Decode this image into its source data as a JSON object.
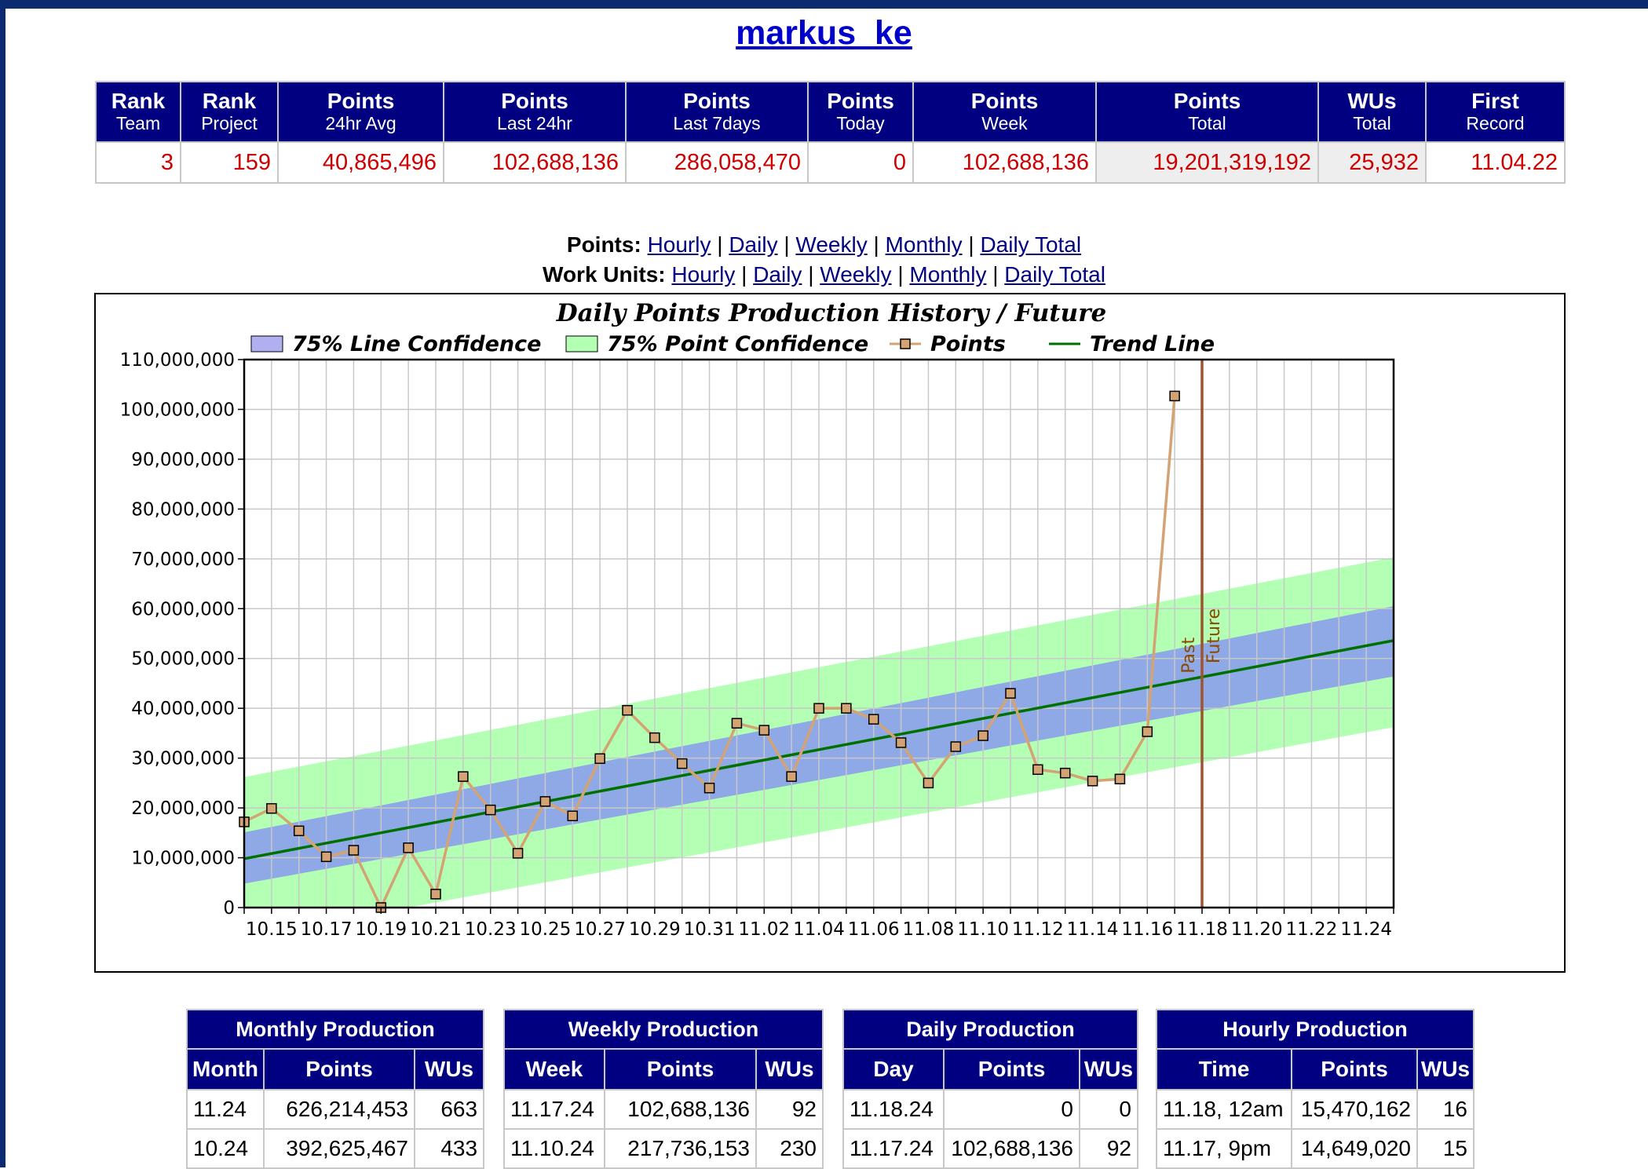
{
  "user": {
    "name": "markus_ke"
  },
  "stats": {
    "headers": [
      {
        "top": "Rank",
        "bottom": "Team"
      },
      {
        "top": "Rank",
        "bottom": "Project"
      },
      {
        "top": "Points",
        "bottom": "24hr Avg"
      },
      {
        "top": "Points",
        "bottom": "Last 24hr"
      },
      {
        "top": "Points",
        "bottom": "Last 7days"
      },
      {
        "top": "Points",
        "bottom": "Today"
      },
      {
        "top": "Points",
        "bottom": "Week"
      },
      {
        "top": "Points",
        "bottom": "Total"
      },
      {
        "top": "WUs",
        "bottom": "Total"
      },
      {
        "top": "First",
        "bottom": "Record"
      }
    ],
    "values": [
      "3",
      "159",
      "40,865,496",
      "102,688,136",
      "286,058,470",
      "0",
      "102,688,136",
      "19,201,319,192",
      "25,932",
      "11.04.22"
    ]
  },
  "nav": {
    "points_label": "Points:",
    "wus_label": "Work Units:",
    "links": [
      "Hourly",
      "Daily",
      "Weekly",
      "Monthly",
      "Daily Total"
    ],
    "separator": "|"
  },
  "chart_data": {
    "type": "line",
    "title": "Daily Points Production History / Future",
    "legend": [
      "75% Line Confidence",
      "75% Point Confidence",
      "Points",
      "Trend Line"
    ],
    "legend_position": "top",
    "x_tick_labels": [
      "10.15",
      "10.17",
      "10.19",
      "10.21",
      "10.23",
      "10.25",
      "10.27",
      "10.29",
      "10.31",
      "11.02",
      "11.04",
      "11.06",
      "11.08",
      "11.10",
      "11.12",
      "11.14",
      "11.16",
      "11.18",
      "11.20",
      "11.22",
      "11.24"
    ],
    "x_range": [
      "10.14",
      "11.25"
    ],
    "ylim": [
      0,
      110000000
    ],
    "y_tick_labels": [
      "0",
      "10,000,000",
      "20,000,000",
      "30,000,000",
      "40,000,000",
      "50,000,000",
      "60,000,000",
      "70,000,000",
      "80,000,000",
      "90,000,000",
      "100,000,000",
      "110,000,000"
    ],
    "grid": true,
    "series": [
      {
        "name": "Points",
        "x": [
          "10.14",
          "10.15",
          "10.16",
          "10.17",
          "10.18",
          "10.19",
          "10.20",
          "10.21",
          "10.22",
          "10.23",
          "10.24",
          "10.25",
          "10.26",
          "10.27",
          "10.28",
          "10.29",
          "10.30",
          "10.31",
          "11.01",
          "11.02",
          "11.03",
          "11.04",
          "11.05",
          "11.06",
          "11.07",
          "11.08",
          "11.09",
          "11.10",
          "11.11",
          "11.12",
          "11.13",
          "11.14",
          "11.15",
          "11.16",
          "11.17"
        ],
        "values": [
          17200000,
          19900000,
          15400000,
          10200000,
          11500000,
          0,
          12000000,
          2700000,
          26300000,
          19600000,
          10900000,
          21300000,
          18400000,
          29900000,
          39600000,
          34100000,
          28900000,
          24000000,
          37000000,
          35600000,
          26300000,
          40000000,
          40000000,
          37800000,
          33100000,
          25000000,
          32300000,
          34500000,
          43000000,
          27700000,
          27000000,
          25400000,
          25800000,
          35300000,
          102688136
        ],
        "color": "#d4a373"
      },
      {
        "name": "Trend Line",
        "x": [
          "10.14",
          "11.25"
        ],
        "values": [
          9800000,
          53600000
        ],
        "color": "#007000"
      }
    ],
    "bands": [
      {
        "name": "75% Line Confidence",
        "x": [
          "10.14",
          "11.25"
        ],
        "lower": [
          4800000,
          46400000
        ],
        "upper": [
          15100000,
          60500000
        ],
        "color": "#8fa9e6"
      },
      {
        "name": "75% Point Confidence",
        "x": [
          "10.14",
          "11.25"
        ],
        "lower": [
          -6000000,
          36200000
        ],
        "upper": [
          26200000,
          70300000
        ],
        "color": "#b3ffb3"
      }
    ],
    "marker": {
      "label_before": "Past",
      "label_after": "Future",
      "x": "11.18",
      "color": "#a0522d"
    }
  },
  "monthly": {
    "caption": "Monthly Production",
    "columns": [
      "Month",
      "Points",
      "WUs"
    ],
    "rows": [
      [
        "11.24",
        "626,214,453",
        "663"
      ],
      [
        "10.24",
        "392,625,467",
        "433"
      ]
    ]
  },
  "weekly": {
    "caption": "Weekly Production",
    "columns": [
      "Week",
      "Points",
      "WUs"
    ],
    "rows": [
      [
        "11.17.24",
        "102,688,136",
        "92"
      ],
      [
        "11.10.24",
        "217,736,153",
        "230"
      ]
    ]
  },
  "daily": {
    "caption": "Daily Production",
    "columns": [
      "Day",
      "Points",
      "WUs"
    ],
    "rows": [
      [
        "11.18.24",
        "0",
        "0"
      ],
      [
        "11.17.24",
        "102,688,136",
        "92"
      ]
    ]
  },
  "hourly": {
    "caption": "Hourly Production",
    "columns": [
      "Time",
      "Points",
      "WUs"
    ],
    "rows": [
      [
        "11.18, 12am",
        "15,470,162",
        "16"
      ],
      [
        "11.17, 9pm",
        "14,649,020",
        "15"
      ]
    ]
  }
}
